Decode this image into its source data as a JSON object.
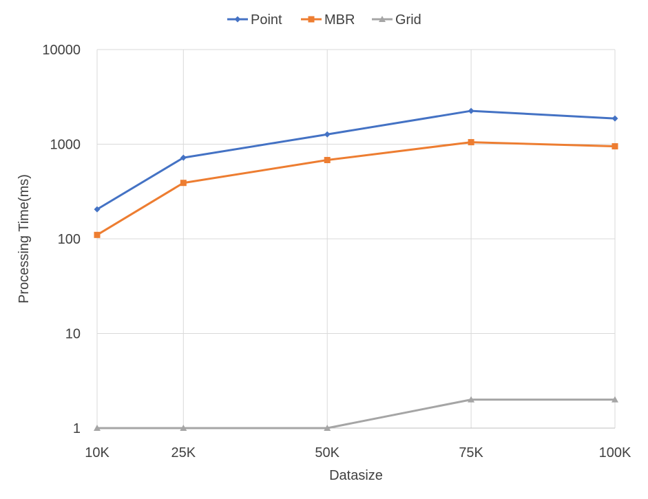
{
  "chart_data": {
    "type": "line",
    "title": "",
    "xlabel": "Datasize",
    "ylabel": "Processing Time(ms)",
    "y_scale": "log",
    "ylim": [
      1,
      10000
    ],
    "y_ticks": [
      1,
      10,
      100,
      1000,
      10000
    ],
    "y_tick_labels": [
      "1",
      "10",
      "100",
      "1000",
      "10000"
    ],
    "categories": [
      "10K",
      "25K",
      "50K",
      "75K",
      "100K"
    ],
    "x_values": [
      10,
      25,
      50,
      75,
      100
    ],
    "grid": true,
    "legend_position": "top",
    "series": [
      {
        "name": "Point",
        "color": "#4472c4",
        "marker": "diamond",
        "values": [
          205,
          720,
          1270,
          2250,
          1870
        ]
      },
      {
        "name": "MBR",
        "color": "#ed7d31",
        "marker": "square",
        "values": [
          110,
          390,
          680,
          1050,
          950
        ]
      },
      {
        "name": "Grid",
        "color": "#a5a5a5",
        "marker": "triangle",
        "values": [
          1,
          1,
          1,
          2,
          2
        ]
      }
    ]
  }
}
